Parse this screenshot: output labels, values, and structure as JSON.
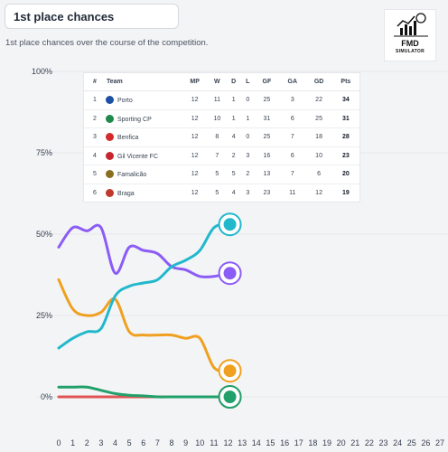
{
  "header": {
    "title": "1st place chances",
    "subtitle": "1st place chances over the course of the competition."
  },
  "logo": {
    "line1": "FMD",
    "line2": "SIMULATOR"
  },
  "standings": {
    "columns": [
      "#",
      "Team",
      "MP",
      "W",
      "D",
      "L",
      "GF",
      "GA",
      "GD",
      "Pts"
    ],
    "rows": [
      {
        "pos": "1",
        "team": "Porto",
        "mp": "12",
        "w": "11",
        "d": "1",
        "l": "0",
        "gf": "25",
        "ga": "3",
        "gd": "22",
        "pts": "34",
        "crest": "#1d4fa3"
      },
      {
        "pos": "2",
        "team": "Sporting CP",
        "mp": "12",
        "w": "10",
        "d": "1",
        "l": "1",
        "gf": "31",
        "ga": "6",
        "gd": "25",
        "pts": "31",
        "crest": "#1f8a4c"
      },
      {
        "pos": "3",
        "team": "Benfica",
        "mp": "12",
        "w": "8",
        "d": "4",
        "l": "0",
        "gf": "25",
        "ga": "7",
        "gd": "18",
        "pts": "28",
        "crest": "#d42a2a"
      },
      {
        "pos": "4",
        "team": "Gil Vicente FC",
        "mp": "12",
        "w": "7",
        "d": "2",
        "l": "3",
        "gf": "16",
        "ga": "6",
        "gd": "10",
        "pts": "23",
        "crest": "#c7262f"
      },
      {
        "pos": "5",
        "team": "Famalicão",
        "mp": "12",
        "w": "5",
        "d": "5",
        "l": "2",
        "gf": "13",
        "ga": "7",
        "gd": "6",
        "pts": "20",
        "crest": "#8a6d1f"
      },
      {
        "pos": "6",
        "team": "Braga",
        "mp": "12",
        "w": "5",
        "d": "4",
        "l": "3",
        "gf": "23",
        "ga": "11",
        "gd": "12",
        "pts": "19",
        "crest": "#c0392b"
      }
    ]
  },
  "chart_data": {
    "type": "line",
    "y_tick_labels": [
      "0%",
      "25%",
      "50%",
      "75%",
      "100%"
    ],
    "ylim": [
      0,
      100
    ],
    "xlim": [
      0,
      27
    ],
    "x_ticks": [
      0,
      1,
      2,
      3,
      4,
      5,
      6,
      7,
      8,
      9,
      10,
      11,
      12,
      13,
      14,
      15,
      16,
      17,
      18,
      19,
      20,
      21,
      22,
      23,
      24,
      25,
      26,
      27
    ],
    "grid": true,
    "series": [
      {
        "team": "Porto",
        "color": "#22b8cc",
        "x": [
          0,
          1,
          2,
          3,
          4,
          5,
          6,
          7,
          8,
          9,
          10,
          11,
          12
        ],
        "y": [
          15,
          18,
          20,
          21,
          31,
          34,
          35,
          36,
          40,
          42,
          45,
          52,
          53
        ]
      },
      {
        "team": "Sporting CP",
        "color": "#8b5cf6",
        "x": [
          0,
          1,
          2,
          3,
          4,
          5,
          6,
          7,
          8,
          9,
          10,
          11,
          12
        ],
        "y": [
          46,
          52,
          51,
          52,
          38,
          46,
          45,
          44,
          40,
          39,
          37,
          37,
          38
        ]
      },
      {
        "team": "Benfica",
        "color": "#f0a020",
        "x": [
          0,
          1,
          2,
          3,
          4,
          5,
          6,
          7,
          8,
          9,
          10,
          11,
          12
        ],
        "y": [
          36,
          27,
          25,
          26,
          30,
          20,
          19,
          19,
          19,
          18,
          18,
          9,
          8
        ]
      },
      {
        "team": "Braga",
        "color": "#22a06b",
        "x": [
          0,
          1,
          2,
          3,
          4,
          5,
          6,
          7,
          8,
          9,
          10,
          11,
          12
        ],
        "y": [
          3,
          3,
          3,
          2,
          1,
          0.5,
          0.3,
          0,
          0,
          0,
          0,
          0,
          0
        ]
      },
      {
        "team": "Gil Vicente FC",
        "color": "#e05555",
        "x": [
          0,
          1,
          2,
          3,
          4,
          5,
          6,
          7,
          8,
          9,
          10,
          11,
          12
        ],
        "y": [
          0,
          0,
          0,
          0,
          0,
          0,
          0,
          0,
          0,
          0,
          0,
          0,
          0
        ]
      }
    ]
  }
}
